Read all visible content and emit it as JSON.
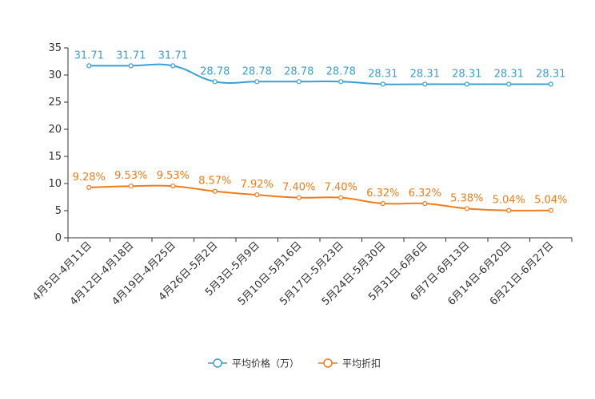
{
  "chart_data": {
    "type": "line",
    "categories": [
      "4月5日-4月11日",
      "4月12日-4月18日",
      "4月19日-4月25日",
      "4月26日-5月2日",
      "5月3日-5月9日",
      "5月10日-5月16日",
      "5月17日-5月23日",
      "5月24日-5月30日",
      "5月31日-6月6日",
      "6月7日-6月13日",
      "6月14日-6月20日",
      "6月21日-6月27日"
    ],
    "series": [
      {
        "name": "平均价格（万）",
        "color": "#3a9fd4",
        "values": [
          31.71,
          31.71,
          31.71,
          28.78,
          28.78,
          28.78,
          28.78,
          28.31,
          28.31,
          28.31,
          28.31,
          28.31
        ],
        "labels": [
          "31.71",
          "31.71",
          "31.71",
          "28.78",
          "28.78",
          "28.78",
          "28.78",
          "28.31",
          "28.31",
          "28.31",
          "28.31",
          "28.31"
        ]
      },
      {
        "name": "平均折扣",
        "color": "#f27c1a",
        "values": [
          9.28,
          9.53,
          9.53,
          8.57,
          7.92,
          7.4,
          7.4,
          6.32,
          6.32,
          5.38,
          5.04,
          5.04
        ],
        "labels": [
          "9.28%",
          "9.53%",
          "9.53%",
          "8.57%",
          "7.92%",
          "7.40%",
          "7.40%",
          "6.32%",
          "6.32%",
          "5.38%",
          "5.04%",
          "5.04%"
        ]
      }
    ],
    "yticks": [
      "0",
      "5",
      "10",
      "15",
      "20",
      "25",
      "30",
      "35"
    ],
    "ylim": [
      0,
      35
    ],
    "title": "",
    "xlabel": "",
    "ylabel": "",
    "grid": false,
    "legend_position": "bottom-center"
  }
}
